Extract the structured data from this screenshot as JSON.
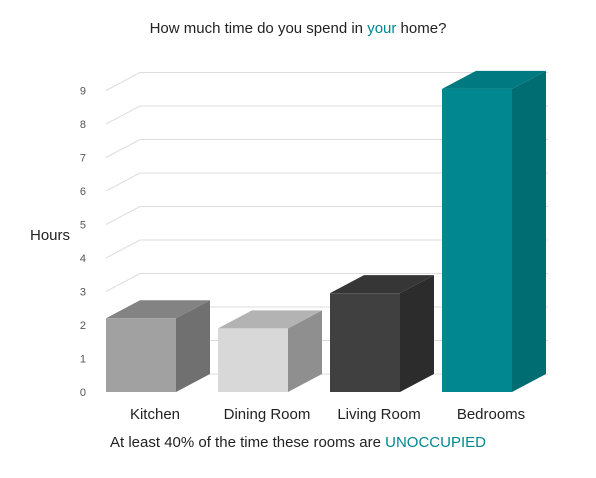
{
  "title": {
    "before": "How much time do you spend in ",
    "highlight": "your",
    "after": " home?"
  },
  "footer": {
    "before": "At least 40% of the time these rooms are ",
    "highlight": "UNOCCUPIED"
  },
  "colors": {
    "accent": "#00878f"
  },
  "chart_data": {
    "type": "bar",
    "categories": [
      "Kitchen",
      "Dining Room",
      "Living Room",
      "Bedrooms"
    ],
    "values": [
      2.2,
      1.9,
      2.95,
      9.05
    ],
    "ylabel": "Hours",
    "xlabel": "",
    "ylim": [
      0,
      9
    ],
    "yticks": [
      0,
      1,
      2,
      3,
      4,
      5,
      6,
      7,
      8,
      9
    ],
    "bar_colors": [
      {
        "front": "#a1a1a1",
        "side": "#707070",
        "top": "#838383"
      },
      {
        "front": "#d8d8d8",
        "side": "#8f8f8f",
        "top": "#b3b3b3"
      },
      {
        "front": "#404040",
        "side": "#2c2c2c",
        "top": "#363636"
      },
      {
        "front": "#00878f",
        "side": "#006d73",
        "top": "#007980"
      }
    ],
    "grid": true,
    "style": "3d"
  }
}
